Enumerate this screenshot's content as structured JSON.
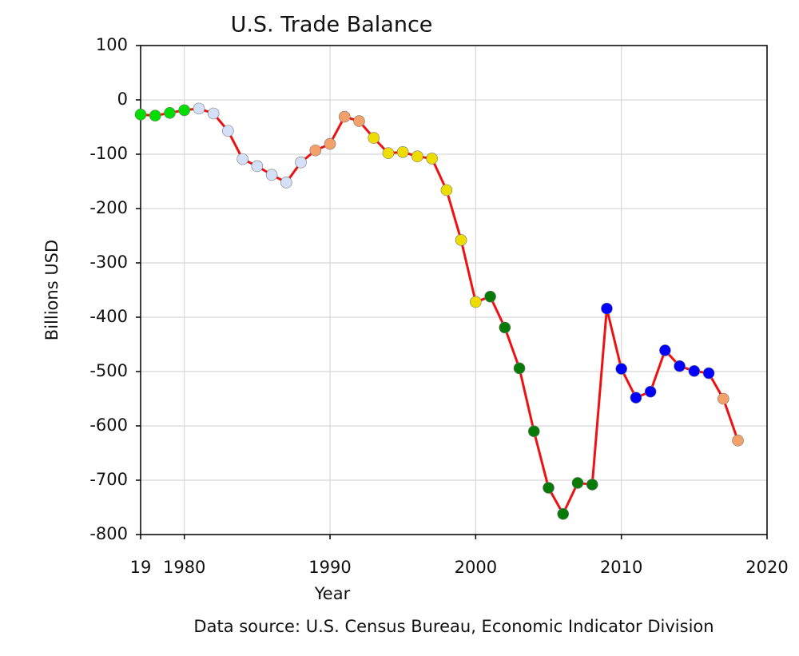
{
  "chart_data": {
    "type": "line",
    "title": "U.S. Trade Balance",
    "xlabel": "Year",
    "ylabel": "Billions USD",
    "note": "Data source: U.S. Census Bureau, Economic Indicator Division",
    "x": [
      1977,
      1978,
      1979,
      1980,
      1981,
      1982,
      1983,
      1984,
      1985,
      1986,
      1987,
      1988,
      1989,
      1990,
      1991,
      1992,
      1993,
      1994,
      1995,
      1996,
      1997,
      1998,
      1999,
      2000,
      2001,
      2002,
      2003,
      2004,
      2005,
      2006,
      2007,
      2008,
      2009,
      2010,
      2011,
      2012,
      2013,
      2014,
      2015,
      2016,
      2017,
      2018
    ],
    "series": [
      {
        "color": "#ee1111",
        "values": [
          -27,
          -29,
          -24,
          -19,
          -16,
          -25,
          -57,
          -109,
          -122,
          -138,
          -152,
          -115,
          -93,
          -81,
          -31,
          -39,
          -70,
          -98,
          -96,
          -104,
          -108,
          -166,
          -258,
          -372,
          -362,
          -419,
          -494,
          -610,
          -714,
          -762,
          -705,
          -708,
          -384,
          -495,
          -548,
          -537,
          -461,
          -490,
          -499,
          -503,
          -550,
          -627
        ],
        "marker_colors": [
          "#00dd00",
          "#00dd00",
          "#00dd00",
          "#00dd00",
          "#d4e0f7",
          "#d4e0f7",
          "#d4e0f7",
          "#d4e0f7",
          "#d4e0f7",
          "#d4e0f7",
          "#d4e0f7",
          "#d4e0f7",
          "#f4a06a",
          "#f4a06a",
          "#f4a06a",
          "#f4a06a",
          "#eedd00",
          "#eedd00",
          "#eedd00",
          "#eedd00",
          "#eedd00",
          "#eedd00",
          "#eedd00",
          "#eedd00",
          "#087a08",
          "#087a08",
          "#087a08",
          "#087a08",
          "#087a08",
          "#087a08",
          "#087a08",
          "#087a08",
          "#0000ff",
          "#0000ff",
          "#0000ff",
          "#0000ff",
          "#0000ff",
          "#0000ff",
          "#0000ff",
          "#0000ff",
          "#f4a06a",
          "#f4a06a"
        ]
      }
    ],
    "xlim": [
      1977,
      2020
    ],
    "xticks": [
      {
        "value": 1977,
        "label": "19"
      },
      1980,
      1990,
      2000,
      2010,
      2020
    ],
    "ylim": [
      -800,
      100
    ],
    "yticks": [
      -800,
      -700,
      -600,
      -500,
      -400,
      -300,
      -200,
      -100,
      0,
      100
    ],
    "grid": true
  }
}
